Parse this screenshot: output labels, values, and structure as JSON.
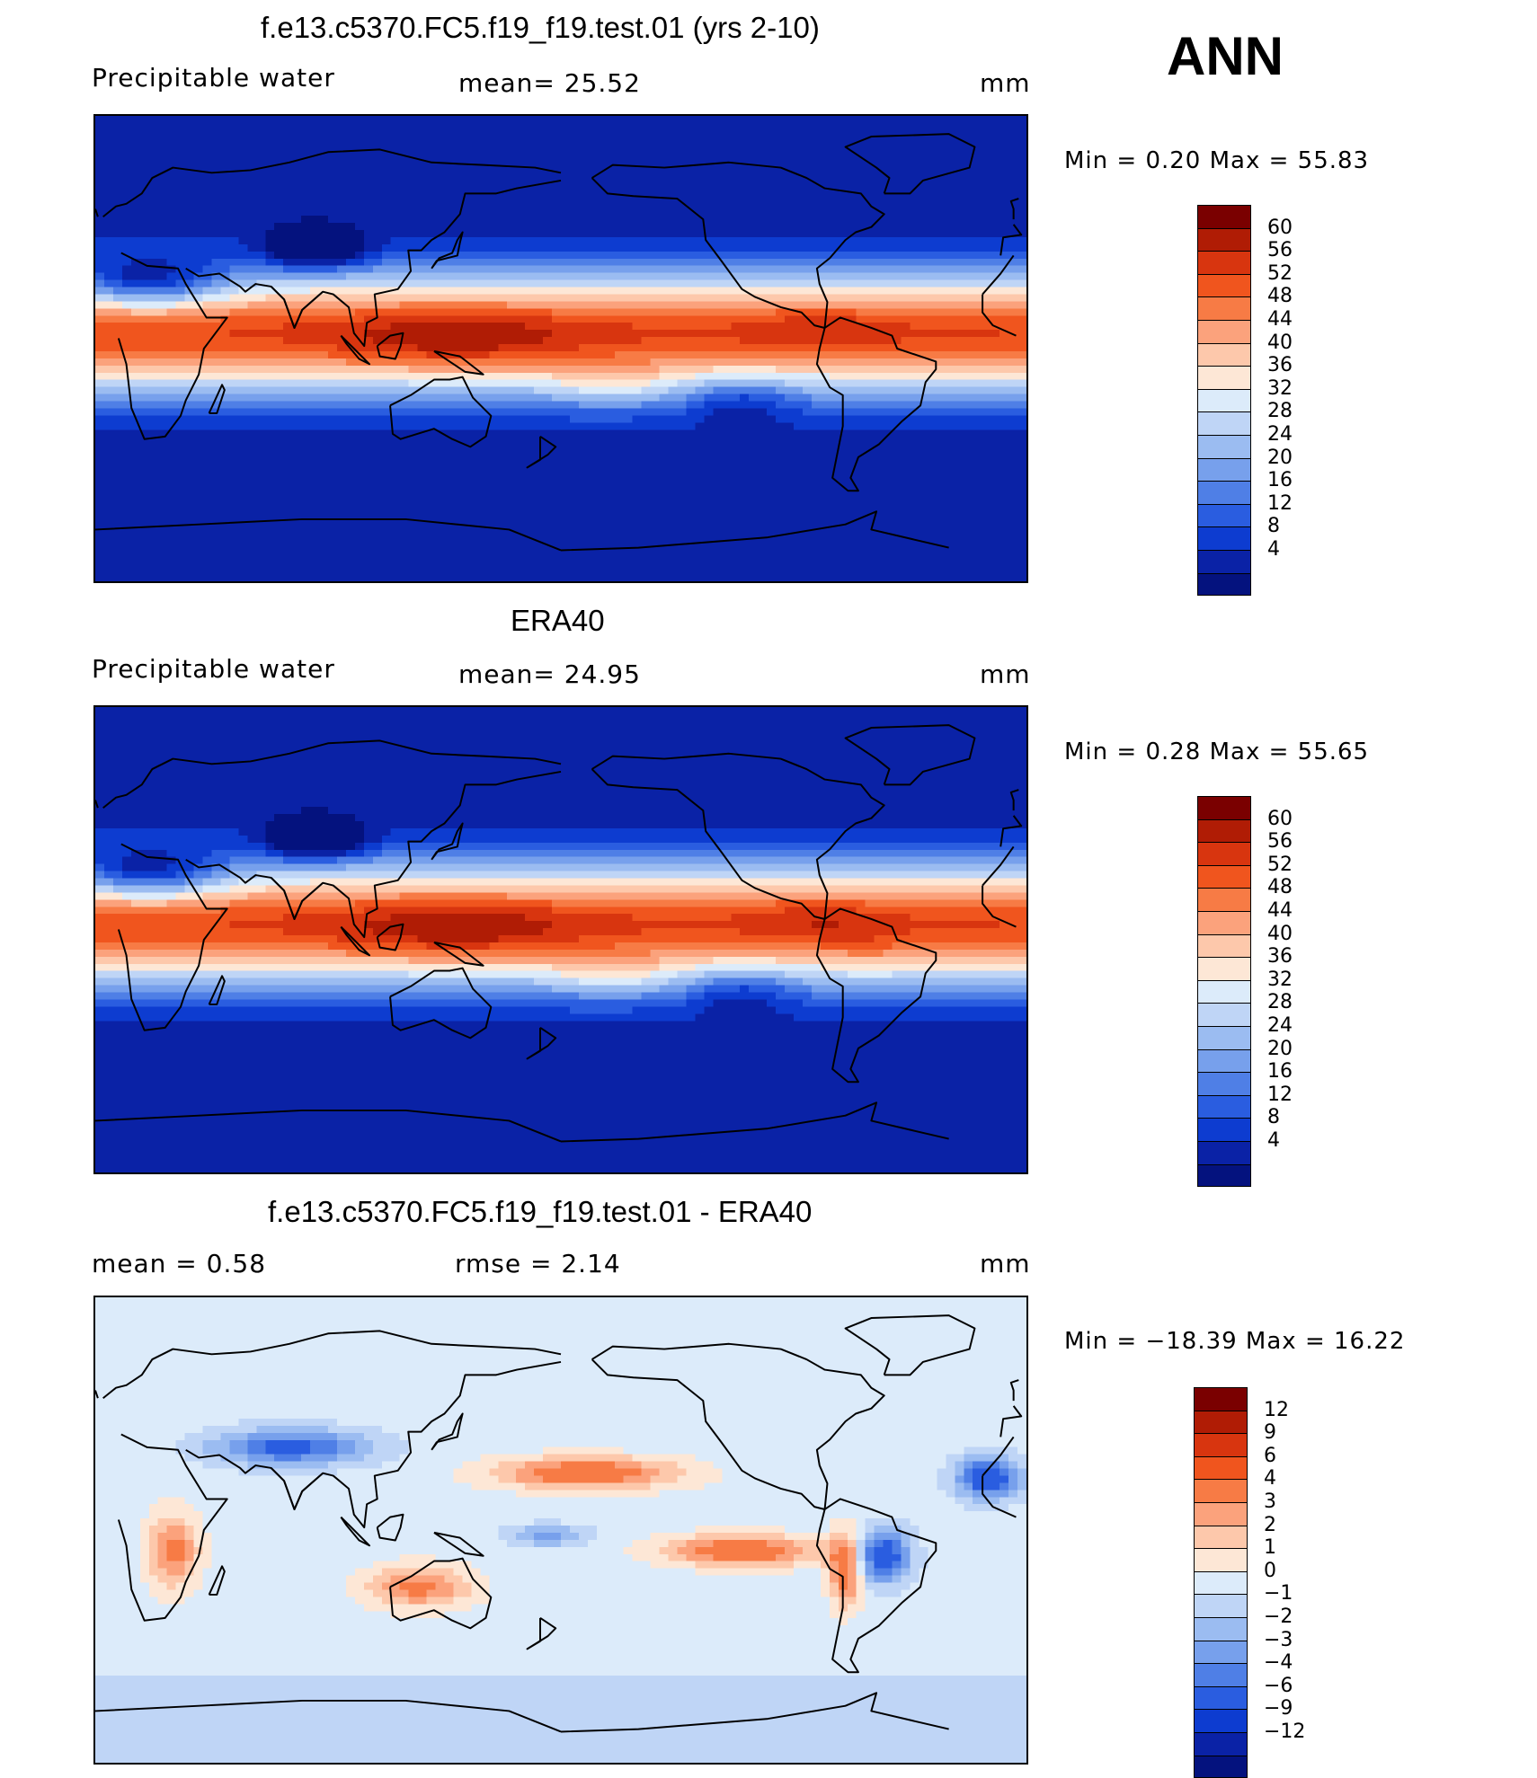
{
  "season": "ANN",
  "panels": [
    {
      "title": "f.e13.c5370.FC5.f19_f19.test.01 (yrs 2-10)",
      "left_label": "Precipitable  water",
      "mid_label": "mean=   25.52",
      "units": "mm",
      "minmax": "Min  =      0.20  Max  =     55.83",
      "field": "model"
    },
    {
      "title": "ERA40",
      "left_label": "Precipitable  water",
      "mid_label": "mean=   24.95",
      "units": "mm",
      "minmax": "Min  =      0.28  Max  =     55.65",
      "field": "obs"
    },
    {
      "title": "f.e13.c5370.FC5.f19_f19.test.01 - ERA40",
      "left_label": "mean  =      0.58",
      "mid_label": "rmse  =      2.14",
      "units": "mm",
      "minmax": "Min  = −18.39  Max  =     16.22",
      "field": "diff"
    }
  ],
  "colorbars": {
    "pw": {
      "colors": [
        "#7a0000",
        "#b01c05",
        "#d8350f",
        "#f0551e",
        "#f77b45",
        "#fba27c",
        "#fdc8ab",
        "#fde7d6",
        "#dcebfa",
        "#bfd5f6",
        "#9bbcf1",
        "#77a0ec",
        "#4f7fe6",
        "#2a5de0",
        "#0d3cd0",
        "#0a22a6",
        "#04127e"
      ],
      "labels": [
        "60",
        "56",
        "52",
        "48",
        "44",
        "40",
        "36",
        "32",
        "28",
        "24",
        "20",
        "16",
        "12",
        "8",
        "4"
      ]
    },
    "diff": {
      "colors": [
        "#7a0000",
        "#b01c05",
        "#d8350f",
        "#f0551e",
        "#f77b45",
        "#fba27c",
        "#fdc8ab",
        "#fde7d6",
        "#dcebfa",
        "#bfd5f6",
        "#9bbcf1",
        "#77a0ec",
        "#4f7fe6",
        "#2a5de0",
        "#0d3cd0",
        "#0a22a6",
        "#04127e"
      ],
      "labels": [
        "12",
        "9",
        "6",
        "4",
        "3",
        "2",
        "1",
        "0",
        "−1",
        "−2",
        "−3",
        "−4",
        "−6",
        "−9",
        "−12"
      ]
    }
  },
  "chart_data": {
    "type": "map",
    "variable": "Precipitable water",
    "units": "mm",
    "panels": [
      {
        "name": "f.e13.c5370.FC5.f19_f19.test.01 (yrs 2-10)",
        "mean": 25.52,
        "min": 0.2,
        "max": 55.83
      },
      {
        "name": "ERA40",
        "mean": 24.95,
        "min": 0.28,
        "max": 55.65
      },
      {
        "name": "f.e13.c5370.FC5.f19_f19.test.01 - ERA40",
        "mean": 0.58,
        "rmse": 2.14,
        "min": -18.39,
        "max": 16.22
      }
    ],
    "contour_levels_pw": [
      4,
      8,
      12,
      16,
      20,
      24,
      28,
      32,
      36,
      40,
      44,
      48,
      52,
      56,
      60
    ],
    "contour_levels_diff": [
      -12,
      -9,
      -6,
      -4,
      -3,
      -2,
      -1,
      0,
      1,
      2,
      3,
      4,
      6,
      9,
      12
    ]
  }
}
